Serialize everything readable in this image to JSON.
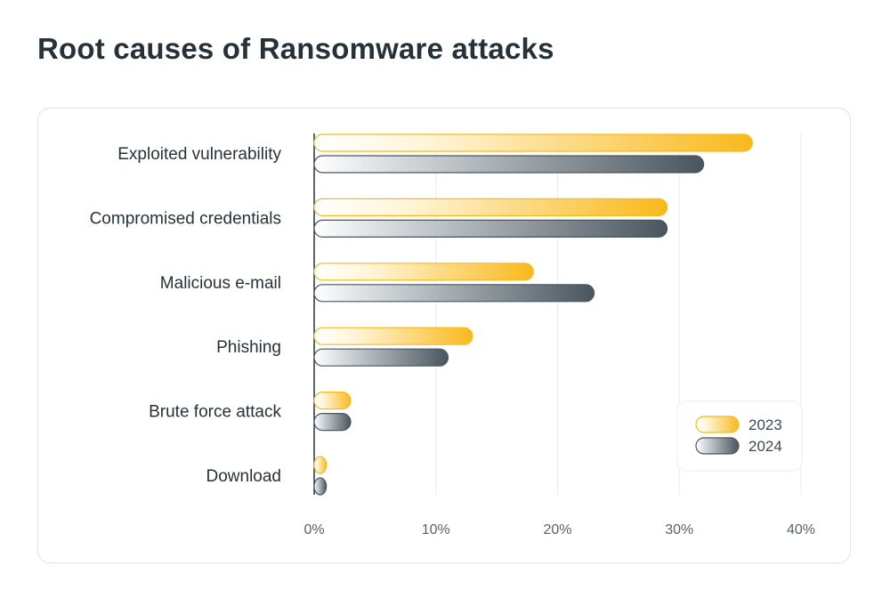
{
  "chart_data": {
    "type": "bar",
    "orientation": "horizontal",
    "title": "Root causes of Ransomware attacks",
    "categories": [
      "Exploited vulnerability",
      "Compromised credentials",
      "Malicious e-mail",
      "Phishing",
      "Brute force attack",
      "Download"
    ],
    "series": [
      {
        "name": "2023",
        "values": [
          36,
          29,
          18,
          13,
          3,
          1
        ],
        "color": "#f9b91c"
      },
      {
        "name": "2024",
        "values": [
          32,
          29,
          23,
          11,
          3,
          1
        ],
        "color": "#4a555e"
      }
    ],
    "xlim": [
      0,
      40
    ],
    "xticks": [
      0,
      10,
      20,
      30,
      40
    ],
    "tick_suffix": "%",
    "grid": true,
    "legend_position": "bottom-right"
  }
}
